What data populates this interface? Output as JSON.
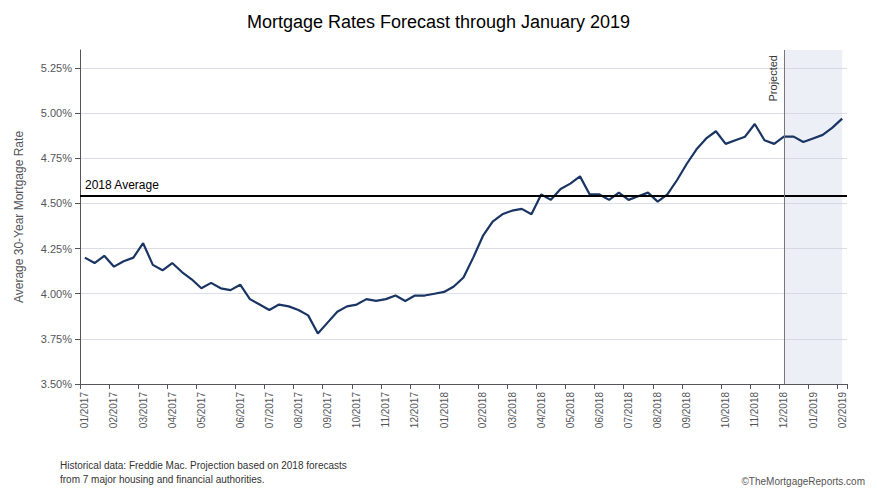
{
  "chart_data": {
    "type": "line",
    "title": "Mortgage Rates Forecast through January 2019",
    "ylabel": "Average 30-Year Mortgage Rate",
    "categories": [
      "01/2017",
      null,
      null,
      "02/2017",
      null,
      null,
      "03/2017",
      null,
      null,
      "04/2017",
      null,
      null,
      "05/2017",
      null,
      null,
      null,
      "06/2017",
      null,
      null,
      "07/2017",
      null,
      null,
      "08/2017",
      null,
      null,
      "09/2017",
      null,
      null,
      "10/2017",
      null,
      null,
      "11/2017",
      null,
      null,
      "12/2017",
      null,
      null,
      "01/2018",
      null,
      null,
      null,
      "02/2018",
      null,
      null,
      "03/2018",
      null,
      null,
      "04/2018",
      null,
      null,
      "05/2018",
      null,
      null,
      "06/2018",
      null,
      null,
      "07/2018",
      null,
      null,
      "08/2018",
      null,
      null,
      "09/2018",
      null,
      null,
      null,
      "10/2018",
      null,
      null,
      "11/2018",
      null,
      null,
      "12/2018",
      null,
      null,
      "01/2019",
      null,
      null,
      "02/2019"
    ],
    "values": [
      4.2,
      4.17,
      4.21,
      4.15,
      4.18,
      4.2,
      4.28,
      4.16,
      4.13,
      4.17,
      4.12,
      4.08,
      4.03,
      4.06,
      4.03,
      4.02,
      4.05,
      3.97,
      3.94,
      3.91,
      3.94,
      3.93,
      3.91,
      3.88,
      3.78,
      3.84,
      3.9,
      3.93,
      3.94,
      3.97,
      3.96,
      3.97,
      3.99,
      3.96,
      3.99,
      3.99,
      4.0,
      4.01,
      4.04,
      4.09,
      4.2,
      4.32,
      4.4,
      4.44,
      4.46,
      4.47,
      4.44,
      4.55,
      4.52,
      4.58,
      4.61,
      4.65,
      4.55,
      4.55,
      4.52,
      4.56,
      4.52,
      4.54,
      4.56,
      4.51,
      4.55,
      4.63,
      4.72,
      4.8,
      4.86,
      4.9,
      4.83,
      4.85,
      4.87,
      4.94,
      4.85,
      4.83,
      4.87,
      4.87,
      4.84,
      4.86,
      4.88,
      4.92,
      4.97
    ],
    "color": "#1a3564",
    "ylim": [
      3.5,
      5.35
    ],
    "yticks": [
      {
        "value": 3.5,
        "label": "3.50%"
      },
      {
        "value": 3.75,
        "label": "3.75%"
      },
      {
        "value": 4.0,
        "label": "4.00%"
      },
      {
        "value": 4.25,
        "label": "4.25%"
      },
      {
        "value": 4.5,
        "label": "4.50%"
      },
      {
        "value": 4.75,
        "label": "4.75%"
      },
      {
        "value": 5.0,
        "label": "5.00%"
      },
      {
        "value": 5.25,
        "label": "5.25%"
      }
    ],
    "grid": true,
    "avg_line": {
      "value": 4.54,
      "label": "2018 Average",
      "color": "#000000"
    },
    "projected": {
      "from": "12/2018",
      "label": "Projected"
    },
    "source": "Historical data: Freddie Mac. Projection based on 2018 forecasts\nfrom 7 major housing and financial authorities.",
    "credit": "©TheMortgageReports.com"
  }
}
